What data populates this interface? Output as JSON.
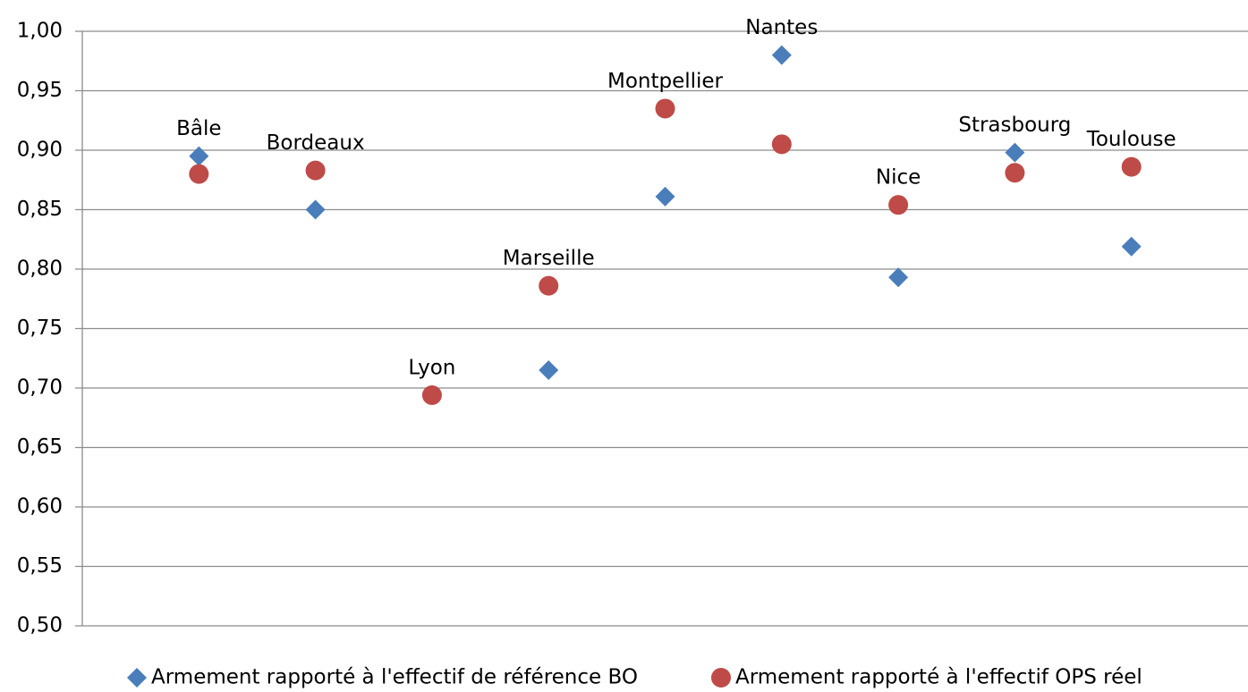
{
  "chart_data": {
    "type": "scatter",
    "categories": [
      "Bâle",
      "Bordeaux",
      "Lyon",
      "Marseille",
      "Montpellier",
      "Nantes",
      "Nice",
      "Strasbourg",
      "Toulouse"
    ],
    "series": [
      {
        "name": "Armement rapporté à l'effectif de référence BO",
        "color": "#4a7ebb",
        "marker": "diamond",
        "values": [
          0.895,
          0.85,
          null,
          0.715,
          0.861,
          0.98,
          0.793,
          0.898,
          0.819
        ]
      },
      {
        "name": "Armement rapporté à l'effectif OPS réel",
        "color": "#be4b48",
        "marker": "circle",
        "values": [
          0.88,
          0.883,
          0.694,
          0.786,
          0.935,
          0.905,
          0.854,
          0.881,
          0.886
        ]
      }
    ],
    "ylim": [
      0.5,
      1.0
    ],
    "yticks": [
      {
        "value": 0.5,
        "label": "0,50"
      },
      {
        "value": 0.55,
        "label": "0,55"
      },
      {
        "value": 0.6,
        "label": "0,60"
      },
      {
        "value": 0.65,
        "label": "0,65"
      },
      {
        "value": 0.7,
        "label": "0,70"
      },
      {
        "value": 0.75,
        "label": "0,75"
      },
      {
        "value": 0.8,
        "label": "0,80"
      },
      {
        "value": 0.85,
        "label": "0,85"
      },
      {
        "value": 0.9,
        "label": "0,90"
      },
      {
        "value": 0.95,
        "label": "0,95"
      },
      {
        "value": 1.0,
        "label": "1,00"
      }
    ],
    "grid": true,
    "legend": "bottom"
  }
}
